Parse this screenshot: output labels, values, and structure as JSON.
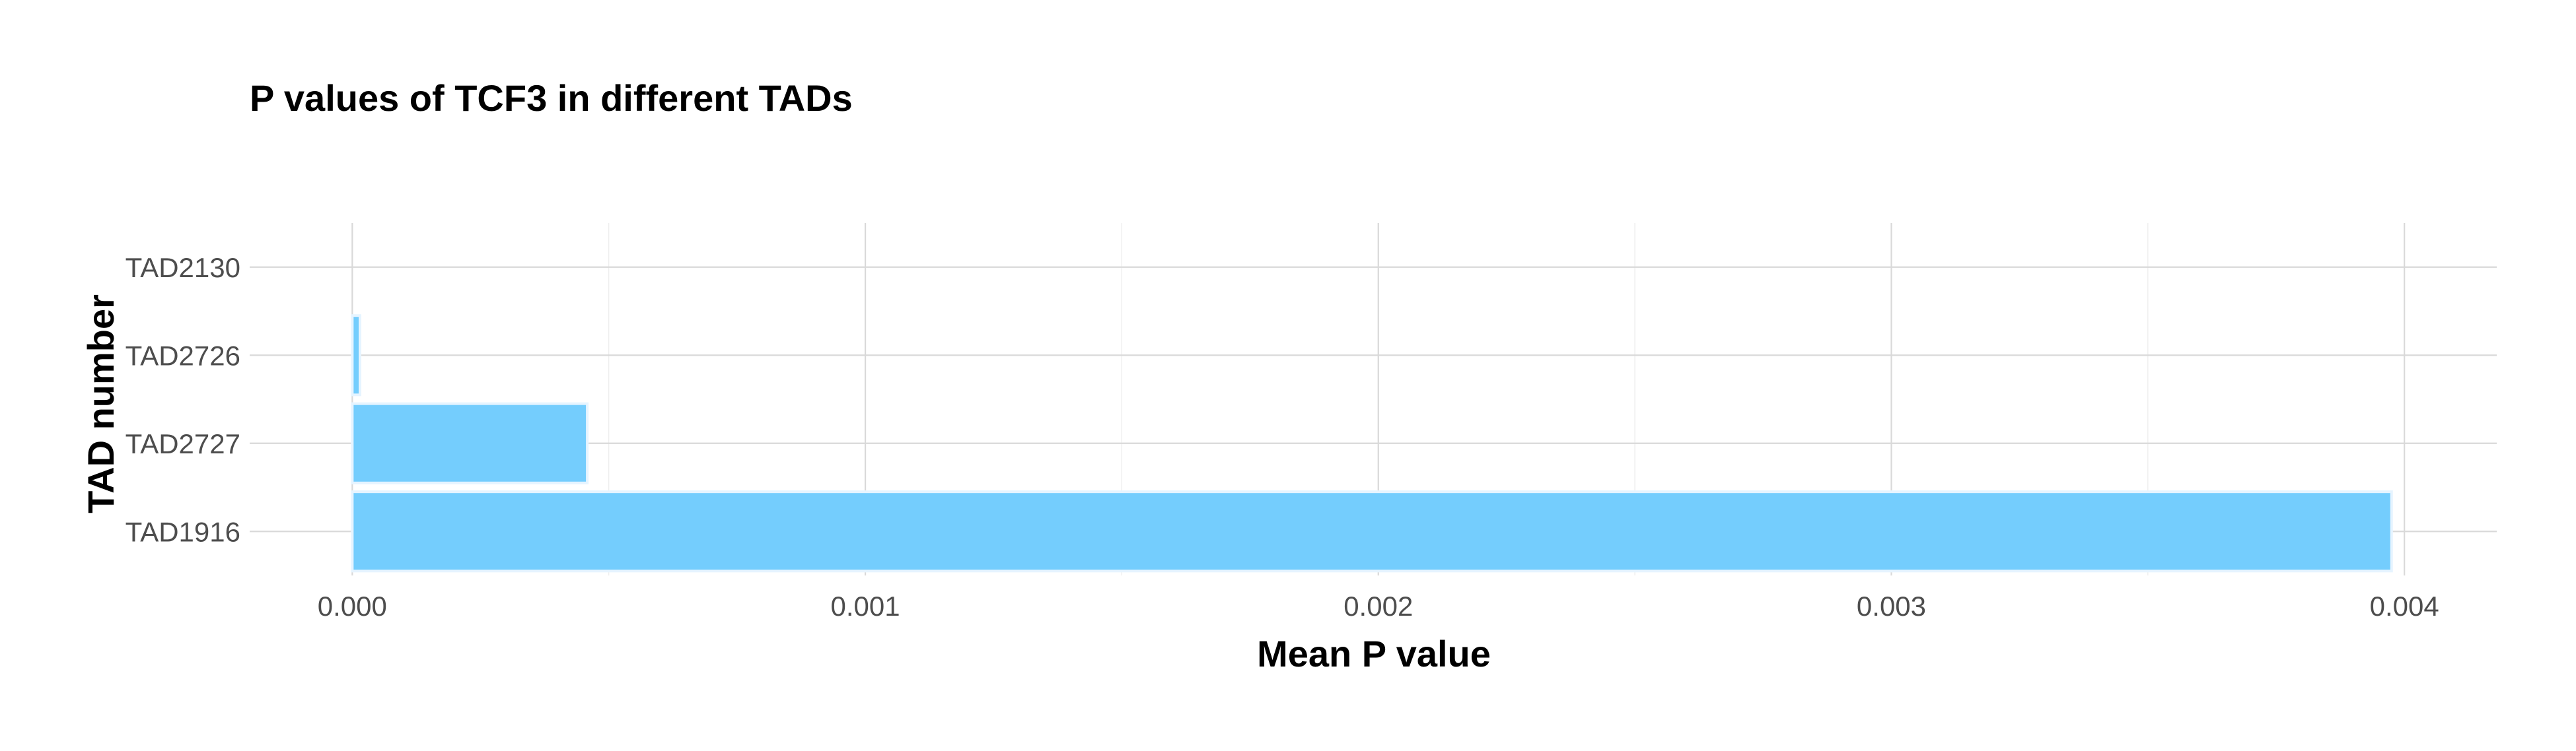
{
  "colors": {
    "bar_fill": "#74cdfd",
    "background": "#ffffff"
  },
  "chart_data": {
    "type": "bar",
    "orientation": "horizontal",
    "title": "P values of TCF3 in different TADs",
    "xlabel": "Mean P value",
    "ylabel": "TAD number",
    "categories": [
      "TAD2130",
      "TAD2726",
      "TAD2727",
      "TAD1916"
    ],
    "values": [
      0.0,
      1.5e-05,
      0.000458,
      0.003975
    ],
    "xlim": [
      -0.0002,
      0.00418
    ],
    "xticks": [
      0.0,
      0.001,
      0.002,
      0.003,
      0.004
    ],
    "xtick_labels": [
      "0.000",
      "0.001",
      "0.002",
      "0.003",
      "0.004"
    ],
    "grid": true,
    "legend": "none"
  }
}
